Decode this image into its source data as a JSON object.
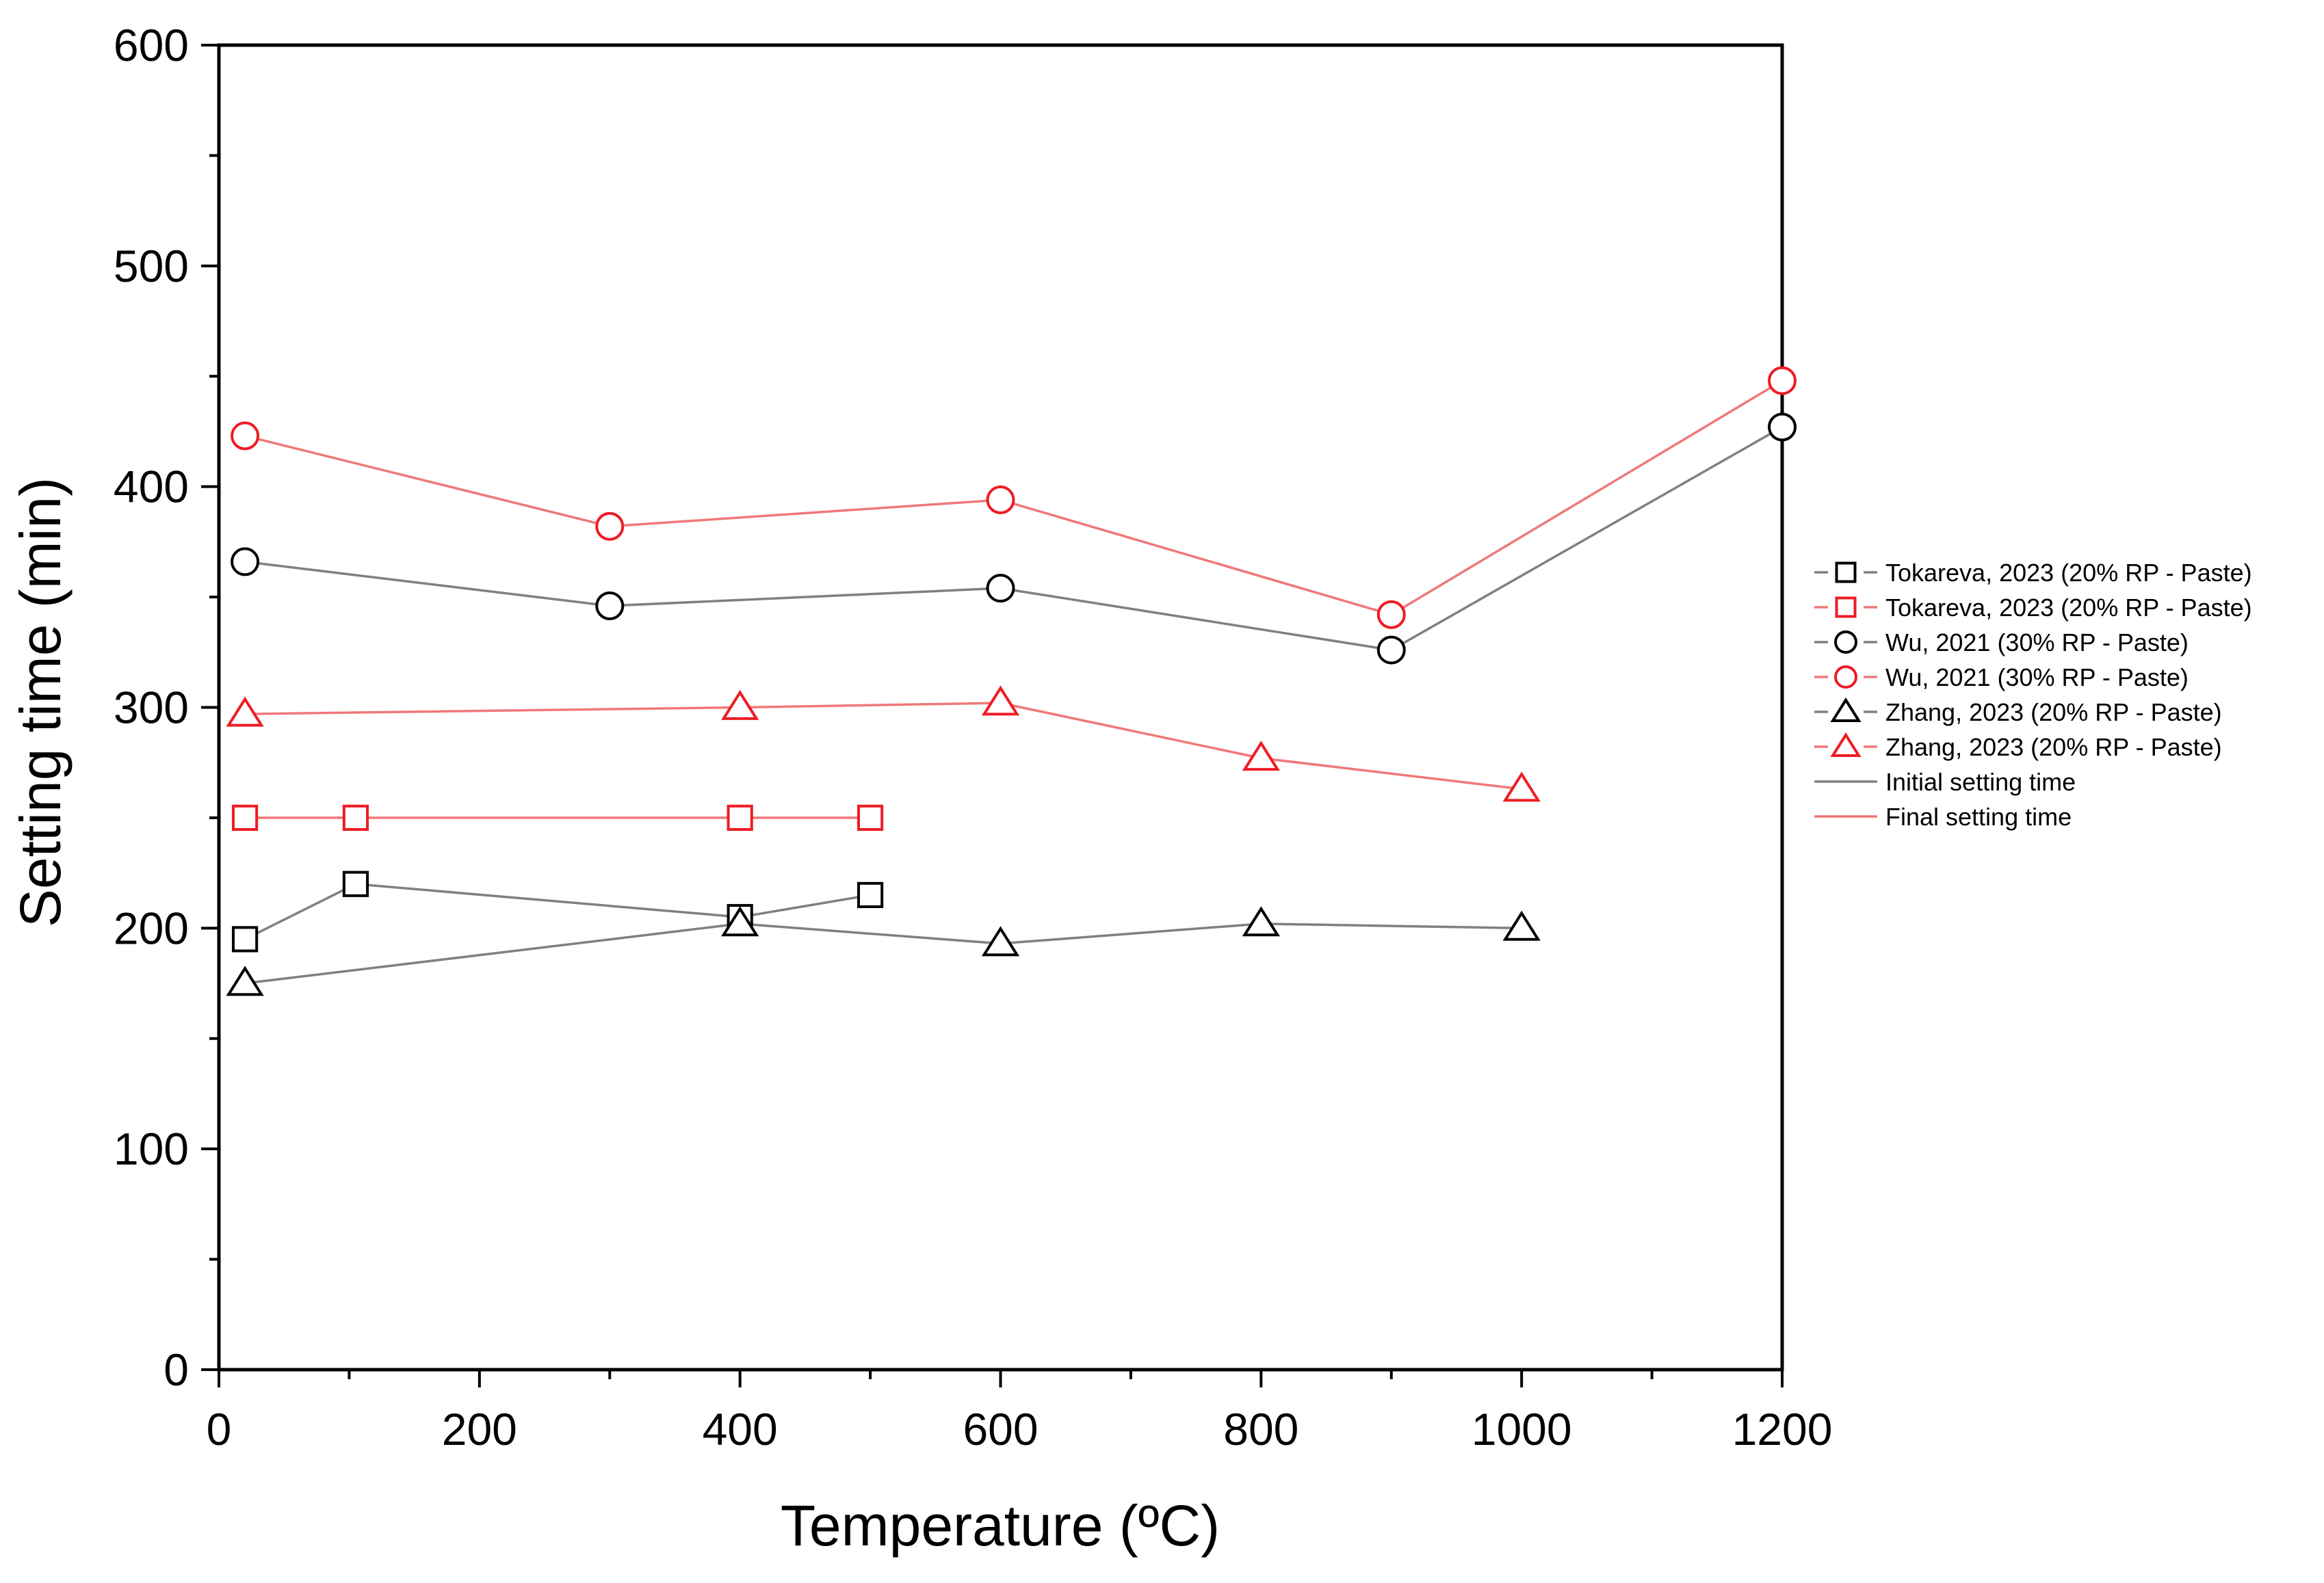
{
  "chart_data": {
    "type": "line",
    "title": "",
    "xlabel": "Temperature (ºC)",
    "ylabel": "Setting time (min)",
    "xlim": [
      0,
      1200
    ],
    "ylim": [
      0,
      600
    ],
    "x_ticks": [
      0,
      200,
      400,
      600,
      800,
      1000,
      1200
    ],
    "y_ticks": [
      0,
      100,
      200,
      300,
      400,
      500,
      600
    ],
    "x_tick_labels": [
      "0",
      "200",
      "400",
      "600",
      "800",
      "1000",
      "1200"
    ],
    "y_tick_labels": [
      "0",
      "100",
      "200",
      "300",
      "400",
      "500",
      "600"
    ],
    "grid": false,
    "legend_position": "right",
    "colors": {
      "initial": "#808080",
      "final": "#f07878",
      "initial_marker": "#000000",
      "final_marker": "#ee1c24"
    },
    "series": [
      {
        "name": "Tokareva, 2023 (20% RP - Paste)",
        "group": "initial",
        "marker": "square",
        "x": [
          20,
          105,
          400,
          500
        ],
        "y": [
          195,
          220,
          205,
          215
        ]
      },
      {
        "name": "Tokareva, 2023 (20% RP - Paste)",
        "group": "final",
        "marker": "square",
        "x": [
          20,
          105,
          400,
          500
        ],
        "y": [
          250,
          250,
          250,
          250
        ]
      },
      {
        "name": "Wu, 2021 (30% RP - Paste)",
        "group": "initial",
        "marker": "circle",
        "x": [
          20,
          300,
          600,
          900,
          1200
        ],
        "y": [
          366,
          346,
          354,
          326,
          427
        ]
      },
      {
        "name": "Wu, 2021 (30% RP - Paste)",
        "group": "final",
        "marker": "circle",
        "x": [
          20,
          300,
          600,
          900,
          1200
        ],
        "y": [
          423,
          382,
          394,
          342,
          448
        ]
      },
      {
        "name": "Zhang, 2023 (20% RP - Paste)",
        "group": "initial",
        "marker": "triangle",
        "x": [
          20,
          400,
          600,
          800,
          1000
        ],
        "y": [
          175,
          202,
          193,
          202,
          200
        ]
      },
      {
        "name": "Zhang, 2023 (20% RP - Paste)",
        "group": "final",
        "marker": "triangle",
        "x": [
          20,
          400,
          600,
          800,
          1000
        ],
        "y": [
          297,
          300,
          302,
          277,
          263
        ]
      }
    ],
    "legend": [
      {
        "label": "Tokareva, 2023 (20% RP - Paste)",
        "group": "initial",
        "marker": "square"
      },
      {
        "label": "Tokareva, 2023 (20% RP - Paste)",
        "group": "final",
        "marker": "square"
      },
      {
        "label": "Wu, 2021 (30% RP - Paste)",
        "group": "initial",
        "marker": "circle"
      },
      {
        "label": "Wu, 2021 (30% RP - Paste)",
        "group": "final",
        "marker": "circle"
      },
      {
        "label": "Zhang, 2023 (20% RP - Paste)",
        "group": "initial",
        "marker": "triangle"
      },
      {
        "label": "Zhang, 2023 (20% RP - Paste)",
        "group": "final",
        "marker": "triangle"
      },
      {
        "label": "Initial setting time",
        "group": "initial",
        "marker": "none"
      },
      {
        "label": "Final setting time",
        "group": "final",
        "marker": "none"
      }
    ]
  }
}
